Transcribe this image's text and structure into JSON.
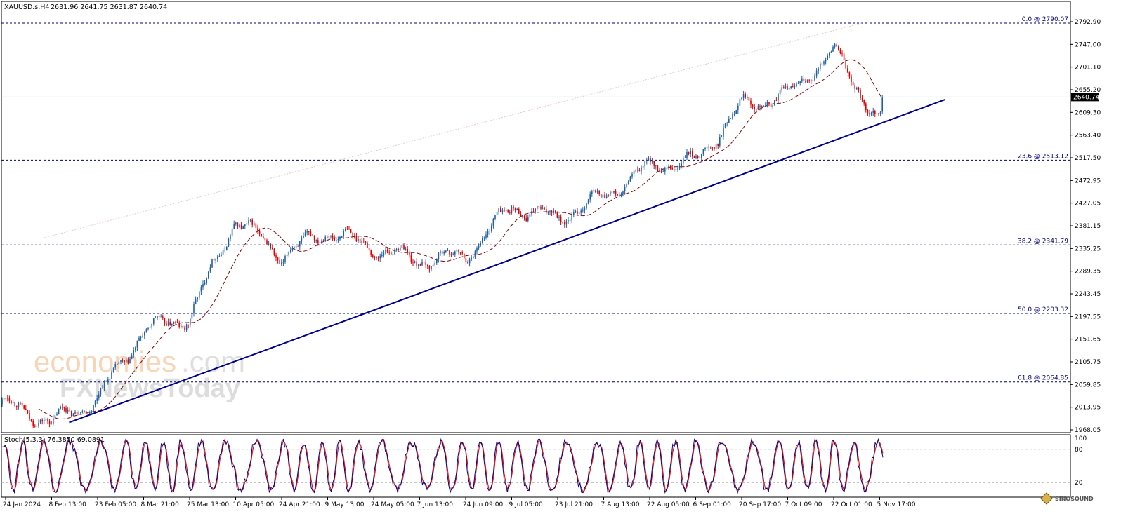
{
  "header": {
    "symbol": "XAUUSD.s,H4",
    "ohlc": "2631.96 2641.75 2631.87 2640.74"
  },
  "price_tag": "2640.74",
  "watermark": {
    "line1a": "economies",
    "line1b": ".com",
    "line2": "FXNewsToday"
  },
  "logo": {
    "text": "SINOSOUND"
  },
  "colors": {
    "bull": "#1f5fa8",
    "bear": "#e00000",
    "ma": "#8b0000",
    "trendline": "#00008b",
    "fib": "#000080",
    "hline": "#a8dcdc",
    "stoch_main": "#00008b",
    "stoch_signal": "#e00000"
  },
  "fib_levels": [
    {
      "label": "0.0 @ 2790.07",
      "price": 2790.07
    },
    {
      "label": "23.6 @ 2513.12",
      "price": 2513.12
    },
    {
      "label": "38.2 @ 2341.79",
      "price": 2341.79
    },
    {
      "label": "50.0 @ 2203.32",
      "price": 2203.32
    },
    {
      "label": "61.8 @ 2064.85",
      "price": 2064.85
    }
  ],
  "indicator": {
    "label": "Stoch(5,3,3) 76.3850 69.0891",
    "ticks": [
      "100",
      "80",
      "20"
    ],
    "levels": [
      100,
      80,
      20
    ]
  },
  "chart_data": {
    "type": "candlestick",
    "title": "",
    "ylim": [
      1968.05,
      2792.9
    ],
    "y_ticks": [
      "2792.90",
      "2747.00",
      "2701.10",
      "2655.20",
      "2609.30",
      "2563.40",
      "2517.50",
      "2472.95",
      "2427.05",
      "2381.15",
      "2335.25",
      "2289.35",
      "2243.45",
      "2197.55",
      "2151.65",
      "2105.75",
      "2059.85",
      "2013.95",
      "1968.05"
    ],
    "x_ticks": [
      "24 Jan 2024",
      "8 Feb 13:00",
      "23 Feb 05:00",
      "8 Mar 21:00",
      "25 Mar 13:00",
      "10 Apr 05:00",
      "24 Apr 21:00",
      "9 May 13:00",
      "24 May 05:00",
      "7 Jun 13:00",
      "24 Jun 09:00",
      "9 Jul 05:00",
      "23 Jul 21:00",
      "7 Aug 13:00",
      "22 Aug 05:00",
      "6 Sep 01:00",
      "20 Sep 17:00",
      "7 Oct 09:00",
      "22 Oct 01:00",
      "5 Nov 17:00"
    ],
    "last_price": 2640.74,
    "current_price_line": 2640.74,
    "trendline": [
      {
        "x": "8 Feb 13:00",
        "y": 1983
      },
      {
        "x": "5 Nov 17:00",
        "y": 2612
      }
    ],
    "path_anchors": [
      {
        "x": "24 Jan 2024",
        "y": 2020
      },
      {
        "x": "8 Feb 13:00",
        "y": 1984
      },
      {
        "x": "23 Feb 05:00",
        "y": 2030
      },
      {
        "x": "8 Mar 21:00",
        "y": 2170
      },
      {
        "x": "25 Mar 13:00",
        "y": 2195
      },
      {
        "x": "10 Apr 05:00",
        "y": 2395
      },
      {
        "x": "24 Apr 21:00",
        "y": 2320
      },
      {
        "x": "9 May 13:00",
        "y": 2370
      },
      {
        "x": "24 May 05:00",
        "y": 2335
      },
      {
        "x": "7 Jun 13:00",
        "y": 2310
      },
      {
        "x": "24 Jun 09:00",
        "y": 2320
      },
      {
        "x": "9 Jul 05:00",
        "y": 2420
      },
      {
        "x": "23 Jul 21:00",
        "y": 2395
      },
      {
        "x": "7 Aug 13:00",
        "y": 2440
      },
      {
        "x": "22 Aug 05:00",
        "y": 2500
      },
      {
        "x": "6 Sep 01:00",
        "y": 2510
      },
      {
        "x": "20 Sep 17:00",
        "y": 2625
      },
      {
        "x": "7 Oct 09:00",
        "y": 2645
      },
      {
        "x": "22 Oct 01:00",
        "y": 2735
      },
      {
        "x": "5 Nov 17:00",
        "y": 2590
      }
    ]
  }
}
